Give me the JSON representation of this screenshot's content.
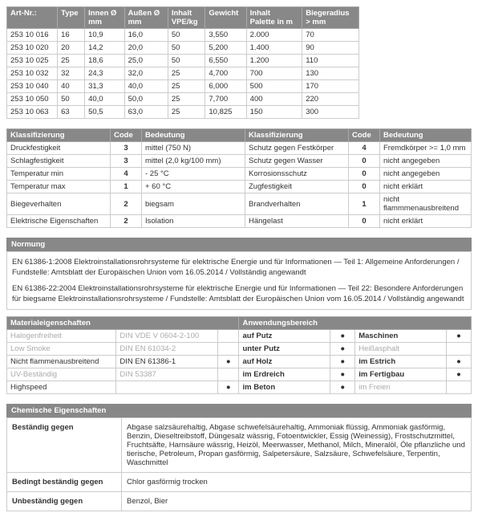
{
  "articles": {
    "headers": [
      "Art-Nr.:",
      "Type",
      "Innen Ø mm",
      "Außen Ø mm",
      "Inhalt VPE/kg",
      "Gewicht",
      "Inhalt Palette in m",
      "Biegeradius > mm"
    ],
    "rows": [
      [
        "253 10 016",
        "16",
        "10,9",
        "16,0",
        "50",
        "3,550",
        "2.000",
        "70"
      ],
      [
        "253 10 020",
        "20",
        "14,2",
        "20,0",
        "50",
        "5,200",
        "1.400",
        "90"
      ],
      [
        "253 10 025",
        "25",
        "18,6",
        "25,0",
        "50",
        "6,550",
        "1.200",
        "110"
      ],
      [
        "253 10 032",
        "32",
        "24,3",
        "32,0",
        "25",
        "4,700",
        "700",
        "130"
      ],
      [
        "253 10 040",
        "40",
        "31,3",
        "40,0",
        "25",
        "6,000",
        "500",
        "170"
      ],
      [
        "253 10 050",
        "50",
        "40,0",
        "50,0",
        "25",
        "7,700",
        "400",
        "220"
      ],
      [
        "253 10 063",
        "63",
        "50,5",
        "63,0",
        "25",
        "10,825",
        "150",
        "300"
      ]
    ]
  },
  "klass": {
    "headers1": [
      "Klassifizierung",
      "Code",
      "Bedeutung"
    ],
    "headers2": [
      "Klassifizierung",
      "Code",
      "Bedeutung"
    ],
    "left": [
      [
        "Druckfestigkeit",
        "3",
        "mittel (750 N)"
      ],
      [
        "Schlagfestigkeit",
        "3",
        "mittel (2,0 kg/100 mm)"
      ],
      [
        "Temperatur min",
        "4",
        "- 25 °C"
      ],
      [
        "Temperatur max",
        "1",
        "+ 60 °C"
      ],
      [
        "Biegeverhalten",
        "2",
        "biegsam"
      ],
      [
        "Elektrische Eigenschaften",
        "2",
        "Isolation"
      ]
    ],
    "right": [
      [
        "Schutz gegen Festkörper",
        "4",
        "Fremdkörper >= 1,0 mm"
      ],
      [
        "Schutz gegen Wasser",
        "0",
        "nicht angegeben"
      ],
      [
        "Korrosionsschutz",
        "0",
        "nicht angegeben"
      ],
      [
        "Zugfestigkeit",
        "0",
        "nicht erklärt"
      ],
      [
        "Brandverhalten",
        "1",
        "nicht flammmenausbreitend"
      ],
      [
        "Hängelast",
        "0",
        "nicht erklärt"
      ]
    ]
  },
  "normung": {
    "title": "Normung",
    "text1": "EN 61386-1:2008 Elektroinstallationsrohrsysteme für elektrische Energie und für Informationen — Teil 1: Allgemeine Anforderungen / Fundstelle: Amtsblatt der Europäischen Union vom 16.05.2014 / Vollständig angewandt",
    "text2": "EN 61386-22:2004 Elektroinstallationsrohrsysteme für elektrische Energie und für Informationen — Teil 22: Besondere Anforderungen für biegsame Elektroinstallationsrohrsysteme / Fundstelle: Amtsblatt der Europäischen Union vom 16.05.2014 / Vollständig angewandt"
  },
  "material": {
    "title_left": "Materialeigenschaften",
    "title_right": "Anwendungsbereich",
    "left": [
      {
        "n": "Halogenfreiheit",
        "v": "DIN VDE V 0604-2-100",
        "grey": true
      },
      {
        "n": "Low Smoke",
        "v": "DIN EN 61034-2",
        "grey": true
      },
      {
        "n": "Nicht flammenausbreitend",
        "v": "DIN EN 61386-1",
        "grey": false
      },
      {
        "n": "UV-Beständig",
        "v": "DIN 53387",
        "grey": true
      },
      {
        "n": "Highspeed",
        "v": "",
        "grey": false
      }
    ],
    "right": [
      {
        "n": "auf Putz",
        "d": "●",
        "n2": "Maschinen",
        "d2": "●"
      },
      {
        "n": "unter Putz",
        "d": "●",
        "n2": "Heißasphalt",
        "d2": "",
        "g2": true
      },
      {
        "n": "auf Holz",
        "d": "●",
        "n2": "im Estrich",
        "d2": "●"
      },
      {
        "n": "im Erdreich",
        "d": "●",
        "n2": "im Fertigbau",
        "d2": "●"
      },
      {
        "n": "im Beton",
        "d": "●",
        "n2": "im Freien",
        "d2": "",
        "g2": true
      }
    ]
  },
  "chem": {
    "title": "Chemische Eigenschaften",
    "rows": [
      [
        "Beständig gegen",
        "Abgase salzsäurehaltig, Abgase schwefelsäurehaltig, Ammoniak flüssig, Ammoniak gasförmig, Benzin, Dieseltreibstoff, Düngesalz wässrig, Fotoentwickler, Essig (Weinessig), Frostschutzmittel, Fruchtsäfte, Harnsäure wässrig, Heizöl, Meerwasser, Methanol, Milch, Mineralöl, Öle pflanzliche und tierische, Petroleum, Propan gasförmig, Salpetersäure, Salzsäure, Schwefelsäure, Terpentin, Waschmittel"
      ],
      [
        "Bedingt beständig gegen",
        "Chlor gasförmig trocken"
      ],
      [
        "Unbeständig gegen",
        "Benzol, Bier"
      ]
    ]
  }
}
